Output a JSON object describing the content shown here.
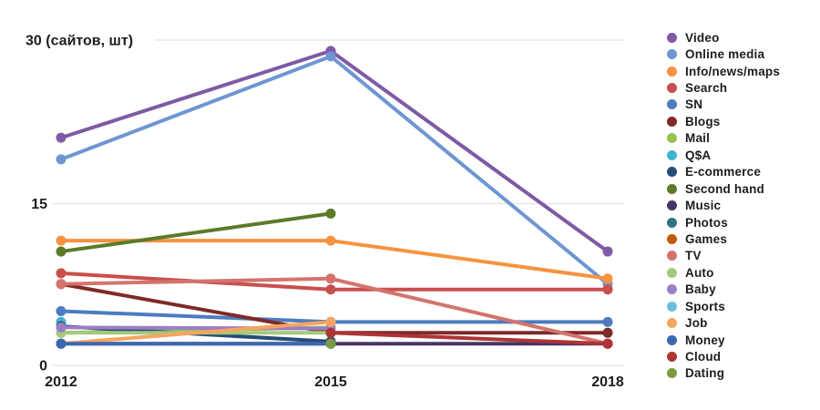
{
  "chart_data": {
    "type": "line",
    "title": "30 (сайтов, шт)",
    "y_axis": {
      "tick_labels": [
        "30 (сайтов, шт)",
        "15",
        "0"
      ],
      "tick_values": [
        30,
        15,
        0
      ],
      "ylim": [
        0,
        30
      ],
      "unit": "сайтов, шт"
    },
    "x_categories": [
      "2012",
      "2015",
      "2018"
    ],
    "grid": "horizontal",
    "legend_position": "right",
    "series": [
      {
        "name": "Video",
        "color": "#7E5AA5",
        "values": [
          21,
          29,
          10.5
        ]
      },
      {
        "name": "Online media",
        "color": "#6E96D3",
        "values": [
          19,
          28.5,
          7.5
        ]
      },
      {
        "name": "Info/news/maps",
        "color": "#F6933F",
        "values": [
          11.5,
          11.5,
          8
        ]
      },
      {
        "name": "Search",
        "color": "#C94F4C",
        "values": [
          8.5,
          7,
          7
        ]
      },
      {
        "name": "SN",
        "color": "#4C7CC0",
        "values": [
          5,
          4,
          4
        ]
      },
      {
        "name": "Blogs",
        "color": "#7E2A28",
        "values": [
          7.5,
          3,
          3
        ]
      },
      {
        "name": "Mail",
        "color": "#9ABF53",
        "values": [
          3,
          3.5,
          null
        ]
      },
      {
        "name": "Q$A",
        "color": "#3FB3CE",
        "values": [
          4,
          null,
          null
        ]
      },
      {
        "name": "E-commerce",
        "color": "#274C77",
        "values": [
          3.6,
          2.2,
          null
        ]
      },
      {
        "name": "Second hand",
        "color": "#5C7A28",
        "values": [
          10.5,
          14,
          null
        ]
      },
      {
        "name": "Music",
        "color": "#483567",
        "values": [
          2,
          2,
          2
        ]
      },
      {
        "name": "Photos",
        "color": "#2E7287",
        "values": [
          2,
          null,
          null
        ]
      },
      {
        "name": "Games",
        "color": "#C25A0C",
        "values": [
          2,
          null,
          null
        ]
      },
      {
        "name": "TV",
        "color": "#D4736E",
        "values": [
          7.5,
          8,
          2
        ]
      },
      {
        "name": "Auto",
        "color": "#A5C97B",
        "values": [
          3,
          3,
          null
        ]
      },
      {
        "name": "Baby",
        "color": "#9A7FC4",
        "values": [
          3.5,
          3.4,
          null
        ]
      },
      {
        "name": "Sports",
        "color": "#6BBFDC",
        "values": [
          2,
          null,
          null
        ]
      },
      {
        "name": "Job",
        "color": "#F7A45F",
        "values": [
          2,
          4,
          null
        ]
      },
      {
        "name": "Money",
        "color": "#3C68AD",
        "values": [
          2,
          2,
          null
        ]
      },
      {
        "name": "Cloud",
        "color": "#B03335",
        "values": [
          null,
          3,
          2
        ]
      },
      {
        "name": "Dating",
        "color": "#7D9A3F",
        "values": [
          null,
          2,
          null
        ]
      }
    ]
  }
}
